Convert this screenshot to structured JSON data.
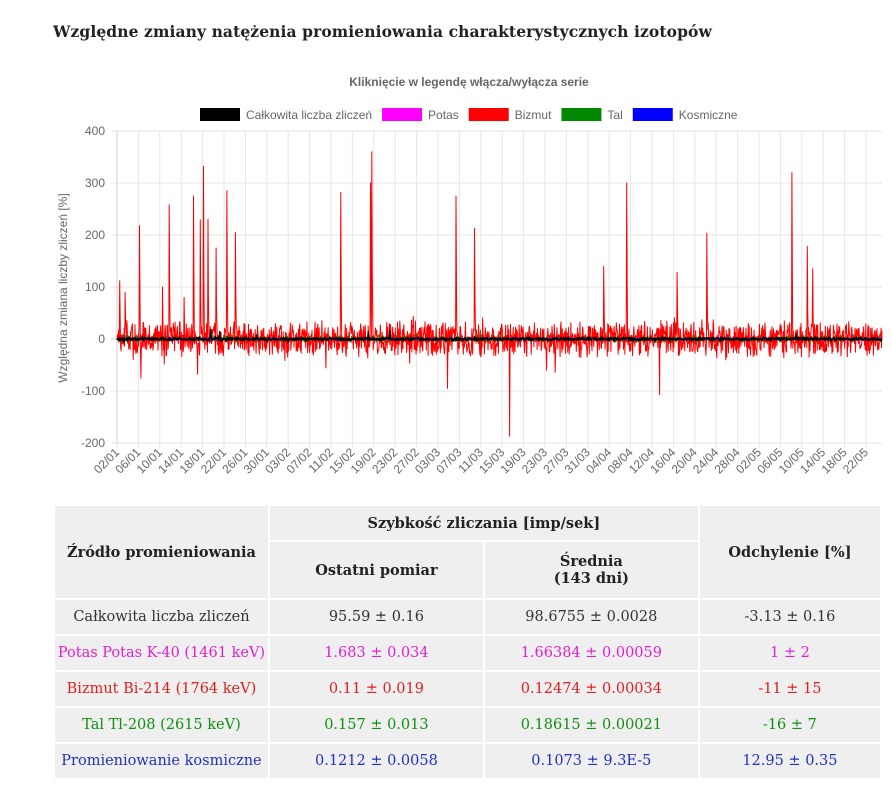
{
  "page": {
    "title": "Względne zmiany natężenia promieniowania charakterystycznych izotopów"
  },
  "chart_data": {
    "type": "line",
    "title": "Kliknięcie w legendę włącza/wyłącza serie",
    "xlabel": "",
    "ylabel": "Względna zmiana liczby zliczeń [%]",
    "ylim": [
      -200,
      400
    ],
    "yticks": [
      -200,
      -100,
      0,
      100,
      200,
      300,
      400
    ],
    "grid": true,
    "legend_position": "top",
    "x_tick_labels": [
      "02/01",
      "06/01",
      "10/01",
      "14/01",
      "18/01",
      "22/01",
      "26/01",
      "30/01",
      "03/02",
      "07/02",
      "11/02",
      "15/02",
      "19/02",
      "23/02",
      "27/02",
      "03/03",
      "07/03",
      "11/03",
      "15/03",
      "19/03",
      "23/03",
      "27/03",
      "31/03",
      "04/04",
      "08/04",
      "12/04",
      "16/04",
      "20/04",
      "24/04",
      "28/04",
      "02/05",
      "06/05",
      "10/05",
      "14/05",
      "18/05",
      "22/05"
    ],
    "x_range_days": [
      0,
      143
    ],
    "series": [
      {
        "name": "Całkowita liczba zliczeń",
        "color": "#000000",
        "baseline": 0,
        "noise_amplitude": 4,
        "peaks": [
          [
            17.5,
            18
          ],
          [
            19.2,
            14
          ],
          [
            47,
            14
          ],
          [
            51,
            16
          ],
          [
            127,
            10
          ]
        ]
      },
      {
        "name": "Potas",
        "color": "#ff00ff",
        "baseline": 0,
        "noise_amplitude": 3,
        "peaks": []
      },
      {
        "name": "Bizmut",
        "color": "#ff0000",
        "baseline": 0,
        "noise_amplitude": 38,
        "peaks": [
          [
            0.5,
            112
          ],
          [
            1.5,
            90
          ],
          [
            4.2,
            218
          ],
          [
            8.5,
            100
          ],
          [
            9.8,
            258
          ],
          [
            12.5,
            80
          ],
          [
            14.3,
            275
          ],
          [
            15.6,
            229
          ],
          [
            16.2,
            332
          ],
          [
            17.0,
            230
          ],
          [
            18.5,
            175
          ],
          [
            20.5,
            285
          ],
          [
            22.1,
            205
          ],
          [
            41.8,
            282
          ],
          [
            47.6,
            360
          ],
          [
            47.4,
            300
          ],
          [
            63.4,
            275
          ],
          [
            66.8,
            213
          ],
          [
            91.0,
            140
          ],
          [
            95.3,
            300
          ],
          [
            104.7,
            128
          ],
          [
            110.3,
            203
          ],
          [
            126.2,
            320
          ],
          [
            129.0,
            178
          ],
          [
            130.0,
            135
          ]
        ],
        "dips": [
          [
            4.5,
            -75
          ],
          [
            61.8,
            -95
          ],
          [
            73.4,
            -187
          ],
          [
            101.4,
            -107
          ]
        ]
      },
      {
        "name": "Tal",
        "color": "#008800",
        "baseline": 0,
        "noise_amplitude": 9,
        "peaks": []
      },
      {
        "name": "Kosmiczne",
        "color": "#0000ff",
        "baseline": 0,
        "noise_amplitude": 2,
        "peaks": []
      }
    ]
  },
  "table": {
    "col_source": "Źródło promieniowania",
    "col_rate": "Szybkość zliczania [imp/sek]",
    "col_last": "Ostatni pomiar",
    "col_avg_line1": "Średnia",
    "col_avg_line2": "(143 dni)",
    "col_dev": "Odchylenie [%]",
    "rows": [
      {
        "source": "Całkowita liczba zliczeń",
        "last": "95.59 ± 0.16",
        "avg": "98.6755 ± 0.0028",
        "dev": "-3.13 ± 0.16",
        "color": "#333333"
      },
      {
        "source": "Potas Potas K-40 (1461 keV)",
        "last": "1.683 ± 0.034",
        "avg": "1.66384 ± 0.00059",
        "dev": "1 ± 2",
        "color": "#e020d0"
      },
      {
        "source": "Bizmut Bi-214 (1764 keV)",
        "last": "0.11 ± 0.019",
        "avg": "0.12474 ± 0.00034",
        "dev": "-11 ± 15",
        "color": "#e02020"
      },
      {
        "source": "Tal Tl-208 (2615 keV)",
        "last": "0.157 ± 0.013",
        "avg": "0.18615 ± 0.00021",
        "dev": "-16 ± 7",
        "color": "#109010"
      },
      {
        "source": "Promieniowanie kosmiczne",
        "last": "0.1212 ± 0.0058",
        "avg": "0.1073 ± 9.3E-5",
        "dev": "12.95 ± 0.35",
        "color": "#2030c0"
      }
    ]
  }
}
